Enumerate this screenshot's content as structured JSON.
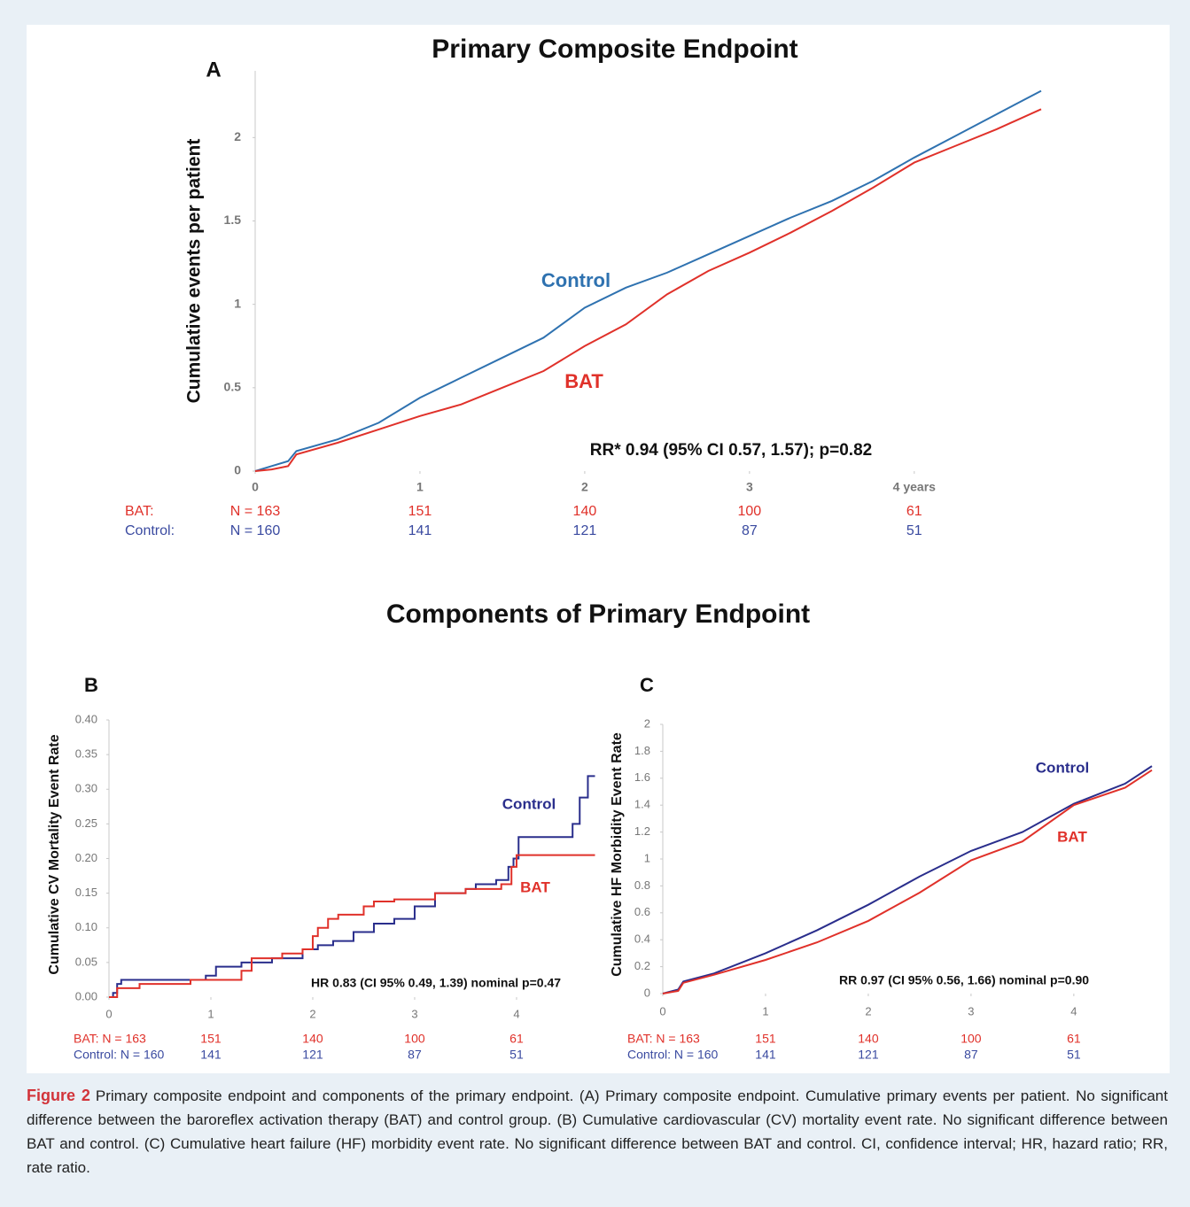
{
  "section_title": "Components of Primary Endpoint",
  "figure_label": "Figure 2",
  "caption": "Primary composite endpoint and components of the primary endpoint. (A) Primary composite endpoint. Cumulative primary events per patient. No significant difference between the baroreflex activation therapy (BAT) and control group. (B) Cumulative cardiovascular (CV) mortality event rate. No significant difference between BAT and control. (C) Cumulative heart failure (HF) morbidity event rate. No significant difference between BAT and control. CI, confidence interval; HR, hazard ratio; RR, rate ratio.",
  "chart_data": [
    {
      "type": "line",
      "title": "Primary Composite Endpoint",
      "panel": "A",
      "ylabel": "Cumulative events per patient",
      "xlim": [
        0,
        4.77
      ],
      "xticks": [
        0,
        1,
        2,
        3,
        {
          "value": 4,
          "label": "4 years"
        }
      ],
      "ylim": [
        0,
        2.4
      ],
      "yticks": [
        0,
        0.5,
        1,
        1.5,
        2
      ],
      "annotation": "RR* 0.94 (95% CI 0.57, 1.57); p=0.82",
      "series": [
        {
          "name": "Control",
          "color": "#2f72b0",
          "x": [
            0,
            0.1,
            0.2,
            0.25,
            0.5,
            0.75,
            1,
            1.25,
            1.5,
            1.75,
            2,
            2.25,
            2.5,
            2.75,
            3,
            3.25,
            3.5,
            3.75,
            4,
            4.25,
            4.5,
            4.77
          ],
          "values": [
            0,
            0.03,
            0.06,
            0.12,
            0.19,
            0.29,
            0.44,
            0.56,
            0.68,
            0.8,
            0.98,
            1.1,
            1.19,
            1.3,
            1.41,
            1.52,
            1.62,
            1.74,
            1.88,
            2.01,
            2.14,
            2.28
          ]
        },
        {
          "name": "BAT",
          "color": "#e0312a",
          "x": [
            0,
            0.1,
            0.2,
            0.25,
            0.5,
            0.75,
            1,
            1.25,
            1.5,
            1.75,
            2,
            2.25,
            2.5,
            2.75,
            3,
            3.25,
            3.5,
            3.75,
            4,
            4.25,
            4.5,
            4.77
          ],
          "values": [
            0,
            0.01,
            0.03,
            0.1,
            0.17,
            0.25,
            0.33,
            0.4,
            0.5,
            0.6,
            0.75,
            0.88,
            1.06,
            1.2,
            1.31,
            1.43,
            1.56,
            1.7,
            1.85,
            1.95,
            2.05,
            2.17
          ]
        }
      ],
      "risk_table": [
        {
          "label": "BAT:",
          "color": "#e0312a",
          "cells": [
            "N = 163",
            151,
            140,
            100,
            61
          ]
        },
        {
          "label": "Control:",
          "color": "#3a4aa0",
          "cells": [
            "N = 160",
            141,
            121,
            87,
            51
          ]
        }
      ]
    },
    {
      "type": "line",
      "step": true,
      "panel": "B",
      "ylabel": "Cumulative CV Mortality Event Rate",
      "xlim": [
        0,
        4.77
      ],
      "xticks": [
        0,
        1,
        2,
        3,
        4
      ],
      "ylim": [
        0,
        0.4
      ],
      "yticks": [
        {
          "value": 0,
          "label": "0.00"
        },
        {
          "value": 0.05,
          "label": "0.05"
        },
        {
          "value": 0.1,
          "label": "0.10"
        },
        {
          "value": 0.15,
          "label": "0.15"
        },
        {
          "value": 0.2,
          "label": "0.20"
        },
        {
          "value": 0.25,
          "label": "0.25"
        },
        {
          "value": 0.3,
          "label": "0.30"
        },
        {
          "value": 0.35,
          "label": "0.35"
        },
        {
          "value": 0.4,
          "label": "0.40"
        }
      ],
      "annotation": "HR 0.83 (CI 95% 0.49, 1.39) nominal p=0.47",
      "series": [
        {
          "name": "Control",
          "color": "#2a2e8c",
          "x": [
            0,
            0.04,
            0.08,
            0.12,
            0.95,
            1.05,
            1.3,
            1.6,
            1.9,
            2.05,
            2.2,
            2.4,
            2.6,
            2.8,
            3.0,
            3.2,
            3.5,
            3.6,
            3.8,
            3.92,
            3.97,
            4.02,
            4.5,
            4.55,
            4.62,
            4.7,
            4.77
          ],
          "values": [
            0,
            0.006,
            0.019,
            0.025,
            0.031,
            0.044,
            0.05,
            0.056,
            0.069,
            0.075,
            0.081,
            0.094,
            0.106,
            0.113,
            0.131,
            0.15,
            0.156,
            0.163,
            0.169,
            0.188,
            0.2,
            0.231,
            0.231,
            0.25,
            0.288,
            0.319,
            0.319
          ]
        },
        {
          "name": "BAT",
          "color": "#e0312a",
          "x": [
            0,
            0.08,
            0.3,
            0.8,
            1.3,
            1.4,
            1.7,
            1.9,
            2.0,
            2.05,
            2.15,
            2.25,
            2.5,
            2.6,
            2.8,
            3.2,
            3.5,
            3.85,
            3.95,
            4.0,
            4.77
          ],
          "values": [
            0,
            0.013,
            0.019,
            0.025,
            0.038,
            0.056,
            0.063,
            0.069,
            0.088,
            0.1,
            0.113,
            0.119,
            0.131,
            0.138,
            0.141,
            0.15,
            0.156,
            0.163,
            0.188,
            0.205,
            0.205
          ]
        }
      ],
      "risk_table": [
        {
          "label": "BAT: N = 163",
          "color": "#e0312a",
          "cells": [
            151,
            140,
            100,
            61
          ]
        },
        {
          "label": "Control: N = 160",
          "color": "#3a4aa0",
          "cells": [
            141,
            121,
            87,
            51
          ]
        }
      ]
    },
    {
      "type": "line",
      "panel": "C",
      "ylabel": "Cumulative HF Morbidity Event Rate",
      "xlim": [
        0,
        4.76
      ],
      "xticks": [
        0,
        1,
        2,
        3,
        4
      ],
      "ylim": [
        0,
        2
      ],
      "yticks": [
        0,
        0.2,
        0.4,
        0.6,
        0.8,
        1,
        1.2,
        1.4,
        1.6,
        1.8,
        2
      ],
      "annotation": "RR 0.97 (CI 95% 0.56, 1.66) nominal p=0.90",
      "series": [
        {
          "name": "Control",
          "color": "#2a2e8c",
          "x": [
            0,
            0.15,
            0.2,
            0.5,
            1,
            1.5,
            2,
            2.5,
            3,
            3.5,
            4,
            4.5,
            4.76
          ],
          "values": [
            0,
            0.03,
            0.09,
            0.15,
            0.3,
            0.47,
            0.66,
            0.87,
            1.06,
            1.2,
            1.41,
            1.56,
            1.69
          ]
        },
        {
          "name": "BAT",
          "color": "#e0312a",
          "x": [
            0,
            0.15,
            0.2,
            0.5,
            1,
            1.5,
            2,
            2.5,
            3,
            3.5,
            4,
            4.5,
            4.76
          ],
          "values": [
            0,
            0.02,
            0.08,
            0.14,
            0.25,
            0.38,
            0.54,
            0.75,
            0.99,
            1.13,
            1.4,
            1.53,
            1.66
          ]
        }
      ],
      "risk_table": [
        {
          "label": "BAT: N = 163",
          "color": "#e0312a",
          "cells": [
            151,
            140,
            100,
            61
          ]
        },
        {
          "label": "Control: N = 160",
          "color": "#3a4aa0",
          "cells": [
            141,
            121,
            87,
            51
          ]
        }
      ]
    }
  ]
}
